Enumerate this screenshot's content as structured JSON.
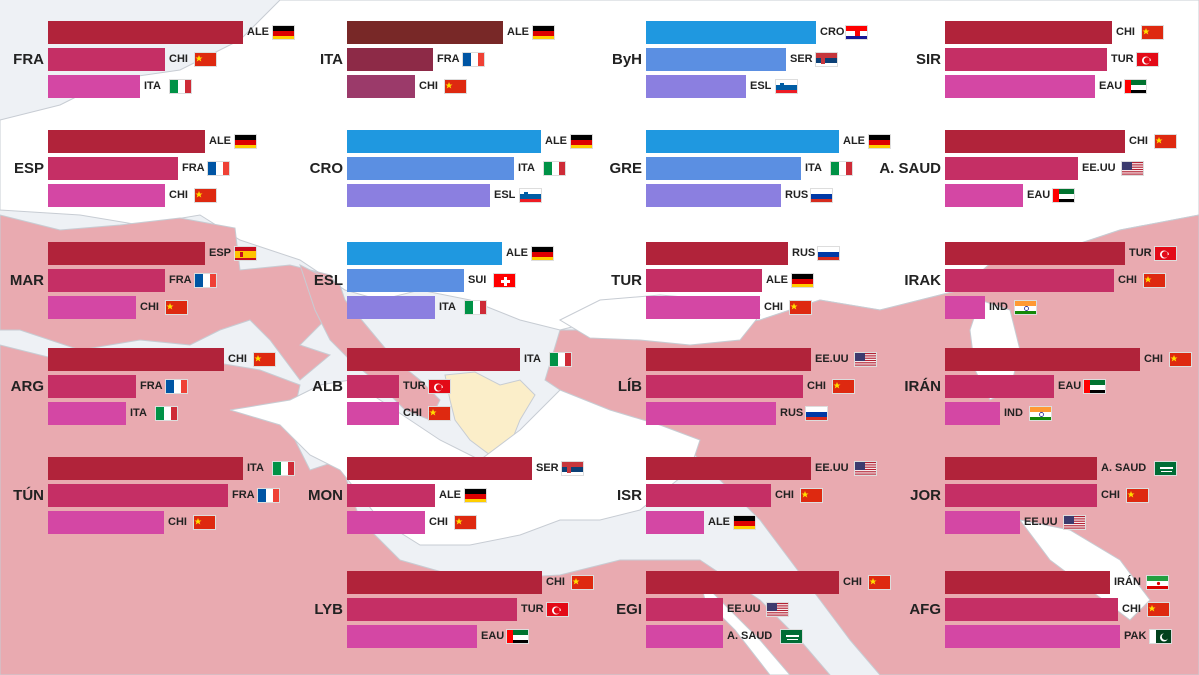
{
  "colors": {
    "red": [
      "#b1233a",
      "#c52f65",
      "#d447a4"
    ],
    "blue": [
      "#1f98e0",
      "#5b8fe2",
      "#8b7fe0"
    ],
    "brown": [
      "#782827",
      "#8d2a47",
      "#9b3a6a"
    ],
    "map_land_light": "#ffffff",
    "map_sea": "#eef1f5",
    "map_land_pink": "#e9aab0",
    "map_land_cream": "#fbeec9"
  },
  "chart_data": {
    "type": "bar",
    "orientation": "horizontal",
    "grid": false,
    "note_values": "unitless relative bar lengths estimated from image",
    "panels": [
      {
        "country": "FRA",
        "palette": "red",
        "bars": [
          {
            "label": "ALE",
            "flag": "de",
            "value": 195
          },
          {
            "label": "CHI",
            "flag": "cn",
            "value": 117
          },
          {
            "label": "ITA",
            "flag": "it",
            "value": 92
          }
        ]
      },
      {
        "country": "ITA",
        "palette": "brown",
        "bars": [
          {
            "label": "ALE",
            "flag": "de",
            "value": 156
          },
          {
            "label": "FRA",
            "flag": "fr",
            "value": 86
          },
          {
            "label": "CHI",
            "flag": "cn",
            "value": 68
          }
        ]
      },
      {
        "country": "ByH",
        "palette": "blue",
        "bars": [
          {
            "label": "CRO",
            "flag": "hr",
            "value": 170
          },
          {
            "label": "SER",
            "flag": "rs",
            "value": 140
          },
          {
            "label": "ESL",
            "flag": "si",
            "value": 100
          }
        ]
      },
      {
        "country": "SIR",
        "palette": "red",
        "bars": [
          {
            "label": "CHI",
            "flag": "cn",
            "value": 167
          },
          {
            "label": "TUR",
            "flag": "tr",
            "value": 162
          },
          {
            "label": "EAU",
            "flag": "ae",
            "value": 150
          }
        ]
      },
      {
        "country": "ESP",
        "palette": "red",
        "bars": [
          {
            "label": "ALE",
            "flag": "de",
            "value": 157
          },
          {
            "label": "FRA",
            "flag": "fr",
            "value": 130
          },
          {
            "label": "CHI",
            "flag": "cn",
            "value": 117
          }
        ]
      },
      {
        "country": "CRO",
        "palette": "blue",
        "bars": [
          {
            "label": "ALE",
            "flag": "de",
            "value": 194
          },
          {
            "label": "ITA",
            "flag": "it",
            "value": 167
          },
          {
            "label": "ESL",
            "flag": "si",
            "value": 143
          }
        ]
      },
      {
        "country": "GRE",
        "palette": "blue",
        "bars": [
          {
            "label": "ALE",
            "flag": "de",
            "value": 193
          },
          {
            "label": "ITA",
            "flag": "it",
            "value": 155
          },
          {
            "label": "RUS",
            "flag": "ru",
            "value": 135
          }
        ]
      },
      {
        "country": "A. SAUD",
        "palette": "red",
        "bars": [
          {
            "label": "CHI",
            "flag": "cn",
            "value": 180
          },
          {
            "label": "EE.UU",
            "flag": "us",
            "value": 133
          },
          {
            "label": "EAU",
            "flag": "ae",
            "value": 78
          }
        ]
      },
      {
        "country": "MAR",
        "palette": "red",
        "bars": [
          {
            "label": "ESP",
            "flag": "es",
            "value": 157
          },
          {
            "label": "FRA",
            "flag": "fr",
            "value": 117
          },
          {
            "label": "CHI",
            "flag": "cn",
            "value": 88
          }
        ]
      },
      {
        "country": "ESL",
        "palette": "blue",
        "bars": [
          {
            "label": "ALE",
            "flag": "de",
            "value": 155
          },
          {
            "label": "SUI",
            "flag": "ch",
            "value": 117
          },
          {
            "label": "ITA",
            "flag": "it",
            "value": 88
          }
        ]
      },
      {
        "country": "TUR",
        "palette": "red",
        "bars": [
          {
            "label": "RUS",
            "flag": "ru",
            "value": 142
          },
          {
            "label": "ALE",
            "flag": "de",
            "value": 116
          },
          {
            "label": "CHI",
            "flag": "cn",
            "value": 114
          }
        ]
      },
      {
        "country": "IRAK",
        "palette": "red",
        "bars": [
          {
            "label": "TUR",
            "flag": "tr",
            "value": 180
          },
          {
            "label": "CHI",
            "flag": "cn",
            "value": 169
          },
          {
            "label": "IND",
            "flag": "in",
            "value": 40
          }
        ]
      },
      {
        "country": "ARG",
        "palette": "red",
        "bars": [
          {
            "label": "CHI",
            "flag": "cn",
            "value": 176
          },
          {
            "label": "FRA",
            "flag": "fr",
            "value": 88
          },
          {
            "label": "ITA",
            "flag": "it",
            "value": 78
          }
        ]
      },
      {
        "country": "ALB",
        "palette": "red",
        "bars": [
          {
            "label": "ITA",
            "flag": "it",
            "value": 173
          },
          {
            "label": "TUR",
            "flag": "tr",
            "value": 52
          },
          {
            "label": "CHI",
            "flag": "cn",
            "value": 52
          }
        ]
      },
      {
        "country": "LÍB",
        "palette": "red",
        "bars": [
          {
            "label": "EE.UU",
            "flag": "us",
            "value": 165
          },
          {
            "label": "CHI",
            "flag": "cn",
            "value": 157
          },
          {
            "label": "RUS",
            "flag": "ru",
            "value": 130
          }
        ]
      },
      {
        "country": "IRÁN",
        "palette": "red",
        "bars": [
          {
            "label": "CHI",
            "flag": "cn",
            "value": 195
          },
          {
            "label": "EAU",
            "flag": "ae",
            "value": 109
          },
          {
            "label": "IND",
            "flag": "in",
            "value": 55
          }
        ]
      },
      {
        "country": "TÚN",
        "palette": "red",
        "bars": [
          {
            "label": "ITA",
            "flag": "it",
            "value": 195
          },
          {
            "label": "FRA",
            "flag": "fr",
            "value": 180
          },
          {
            "label": "CHI",
            "flag": "cn",
            "value": 116
          }
        ]
      },
      {
        "country": "MON",
        "palette": "red",
        "bars": [
          {
            "label": "SER",
            "flag": "rs",
            "value": 185
          },
          {
            "label": "ALE",
            "flag": "de",
            "value": 88
          },
          {
            "label": "CHI",
            "flag": "cn",
            "value": 78
          }
        ]
      },
      {
        "country": "ISR",
        "palette": "red",
        "bars": [
          {
            "label": "EE.UU",
            "flag": "us",
            "value": 165
          },
          {
            "label": "CHI",
            "flag": "cn",
            "value": 125
          },
          {
            "label": "ALE",
            "flag": "de",
            "value": 58
          }
        ]
      },
      {
        "country": "JOR",
        "palette": "red",
        "bars": [
          {
            "label": "A. SAUD",
            "flag": "sa",
            "value": 152
          },
          {
            "label": "CHI",
            "flag": "cn",
            "value": 152
          },
          {
            "label": "EE.UU",
            "flag": "us",
            "value": 75
          }
        ]
      },
      {
        "country": "LYB",
        "palette": "red",
        "bars": [
          {
            "label": "CHI",
            "flag": "cn",
            "value": 195
          },
          {
            "label": "TUR",
            "flag": "tr",
            "value": 170
          },
          {
            "label": "EAU",
            "flag": "ae",
            "value": 130
          }
        ]
      },
      {
        "country": "EGI",
        "palette": "red",
        "bars": [
          {
            "label": "CHI",
            "flag": "cn",
            "value": 193
          },
          {
            "label": "EE.UU",
            "flag": "us",
            "value": 77
          },
          {
            "label": "A. SAUD",
            "flag": "sa",
            "value": 77
          }
        ]
      },
      {
        "country": "AFG",
        "palette": "red",
        "bars": [
          {
            "label": "IRÁN",
            "flag": "ir",
            "value": 165
          },
          {
            "label": "CHI",
            "flag": "cn",
            "value": 173
          },
          {
            "label": "PAK",
            "flag": "pk",
            "value": 175
          }
        ]
      }
    ]
  }
}
